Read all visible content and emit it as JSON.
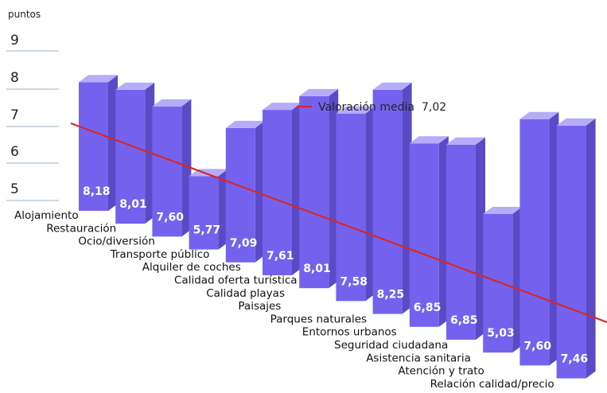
{
  "chart_data": {
    "type": "bar",
    "ylabel": "puntos",
    "y_ticks": [
      "9",
      "8",
      "7",
      "6",
      "5"
    ],
    "ylim": [
      4.5,
      9
    ],
    "categories": [
      "Alojamiento",
      "Restauración",
      "Ocio/diversión",
      "Transporte público",
      "Alquiler de coches",
      "Calidad oferta turística",
      "Calidad playas",
      "Paisajes",
      "Parques naturales",
      "Entornos urbanos",
      "Seguridad ciudadana",
      "Asistencia sanitaria",
      "Atención y trato",
      "Relación calidad/precio"
    ],
    "values": [
      8.18,
      8.01,
      7.6,
      5.77,
      7.09,
      7.61,
      8.01,
      7.58,
      8.25,
      6.85,
      6.85,
      5.03,
      7.6,
      7.46
    ],
    "value_labels": [
      "8,18",
      "8,01",
      "7,60",
      "5,77",
      "7,09",
      "7,61",
      "8,01",
      "7,58",
      "8,25",
      "6,85",
      "6,85",
      "5,03",
      "7,60",
      "7,46"
    ],
    "average": {
      "label": "Valoración media",
      "value": 7.02,
      "value_label": "7,02",
      "color": "#d62828"
    },
    "bar_colors": {
      "front": "#7462ee",
      "side": "#5a4ac6",
      "top": "#b6acf8"
    },
    "grid": false,
    "legend_position": "top-right"
  }
}
